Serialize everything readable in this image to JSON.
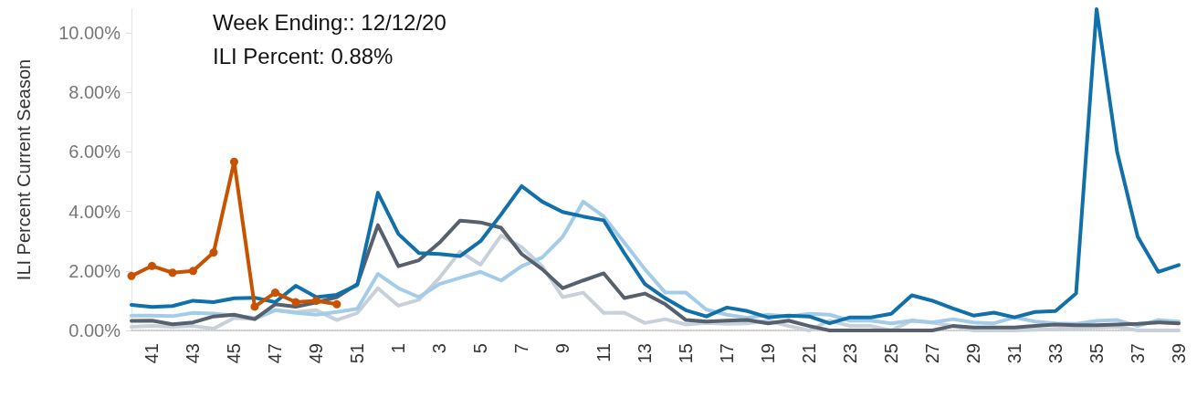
{
  "chart_data": {
    "type": "line",
    "ylabel": "ILI Percent Current Season",
    "categories": [
      null,
      "41",
      null,
      "43",
      null,
      "45",
      null,
      "47",
      null,
      "49",
      null,
      "51",
      null,
      "1",
      null,
      "3",
      null,
      "5",
      null,
      "7",
      null,
      "9",
      null,
      "11",
      null,
      "13",
      null,
      "15",
      null,
      "17",
      null,
      "19",
      null,
      "21",
      null,
      "23",
      null,
      "25",
      null,
      "27",
      null,
      "29",
      null,
      "31",
      null,
      "33",
      null,
      "35",
      null,
      "37",
      null,
      "39"
    ],
    "yticks": [
      {
        "value": 0,
        "label": "0.00%"
      },
      {
        "value": 2,
        "label": "2.00%"
      },
      {
        "value": 4,
        "label": "4.00%"
      },
      {
        "value": 6,
        "label": "6.00%"
      },
      {
        "value": 8,
        "label": "8.00%"
      },
      {
        "value": 10,
        "label": "10.00%"
      }
    ],
    "ylim": [
      0,
      10.8
    ],
    "grid": false,
    "line_style": "solid",
    "annotations": [
      "Week Ending:: 12/12/20",
      "ILI Percent: 0.88%"
    ],
    "series": [
      {
        "color": "#c8d0d9",
        "marker": "none",
        "values": [
          0.12,
          0.15,
          0.12,
          0.15,
          0.06,
          0.42,
          0.38,
          0.68,
          0.62,
          0.68,
          0.35,
          0.59,
          1.42,
          0.83,
          1.03,
          1.77,
          2.65,
          2.21,
          3.19,
          2.8,
          2.16,
          1.12,
          1.27,
          0.59,
          0.6,
          0.25,
          0.38,
          0.2,
          0.25,
          0.22,
          0.24,
          0.33,
          0.15,
          0,
          0.33,
          0.15,
          0.15,
          0,
          0.33,
          0.27,
          0.15,
          0,
          0,
          0,
          0.02,
          0.05,
          0.08,
          0.1,
          0.12,
          0,
          0,
          0
        ]
      },
      {
        "color": "#a3cce9",
        "marker": "none",
        "values": [
          0.5,
          0.5,
          0.48,
          0.59,
          0.57,
          0.5,
          0.42,
          0.68,
          0.59,
          0.53,
          0.62,
          0.73,
          1.9,
          1.42,
          1.12,
          1.56,
          1.77,
          1.97,
          1.68,
          2.16,
          2.45,
          3.15,
          4.33,
          3.83,
          2.95,
          2.06,
          1.27,
          1.27,
          0.7,
          0.53,
          0.42,
          0.53,
          0.47,
          0.56,
          0.53,
          0.33,
          0.33,
          0.24,
          0.33,
          0.27,
          0.38,
          0.27,
          0.24,
          0.44,
          0.3,
          0.24,
          0.22,
          0.32,
          0.35,
          0.15,
          0.35,
          0.3
        ]
      },
      {
        "color": "#57606c",
        "marker": "none",
        "values": [
          0.32,
          0.33,
          0.21,
          0.27,
          0.47,
          0.53,
          0.38,
          0.88,
          0.8,
          0.94,
          1.12,
          1.56,
          3.54,
          2.16,
          2.36,
          2.95,
          3.69,
          3.63,
          3.45,
          2.57,
          2.06,
          1.42,
          1.68,
          1.92,
          1.09,
          1.24,
          0.88,
          0.35,
          0.3,
          0.33,
          0.35,
          0.24,
          0.33,
          0.15,
          0,
          0,
          0,
          0,
          0,
          0,
          0.15,
          0.1,
          0.1,
          0.1,
          0.15,
          0.2,
          0.18,
          0.18,
          0.2,
          0.22,
          0.27,
          0.24
        ]
      },
      {
        "color": "#1170aa",
        "marker": "none",
        "values": [
          0.86,
          0.79,
          0.82,
          1.0,
          0.95,
          1.08,
          1.1,
          0.95,
          1.5,
          1.12,
          1.2,
          1.53,
          4.63,
          3.24,
          2.6,
          2.57,
          2.5,
          3.0,
          3.9,
          4.85,
          4.33,
          3.98,
          3.83,
          3.7,
          2.6,
          1.56,
          1.08,
          0.68,
          0.47,
          0.77,
          0.65,
          0.44,
          0.5,
          0.47,
          0.24,
          0.44,
          0.44,
          0.56,
          1.18,
          1.0,
          0.74,
          0.5,
          0.6,
          0.44,
          0.62,
          0.65,
          1.24,
          10.8,
          6.0,
          3.15,
          1.97,
          2.2
        ]
      },
      {
        "color": "#c85200",
        "marker": "circle",
        "values": [
          1.83,
          2.17,
          1.94,
          2.0,
          2.62,
          5.67,
          0.8,
          1.27,
          0.95,
          1.0,
          0.88,
          null,
          null,
          null,
          null,
          null,
          null,
          null,
          null,
          null,
          null,
          null,
          null,
          null,
          null,
          null,
          null,
          null,
          null,
          null,
          null,
          null,
          null,
          null,
          null,
          null,
          null,
          null,
          null,
          null,
          null,
          null,
          null,
          null,
          null,
          null,
          null,
          null,
          null,
          null,
          null,
          null
        ]
      }
    ]
  }
}
